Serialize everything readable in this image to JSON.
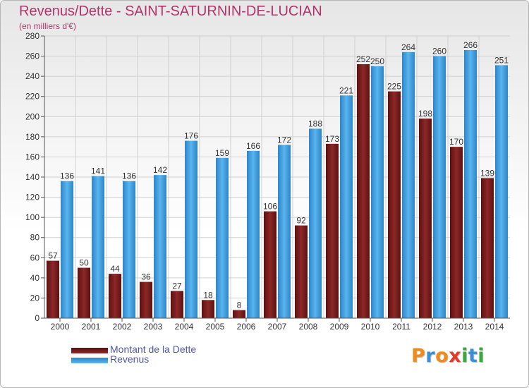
{
  "chart_data": {
    "type": "bar",
    "title": "Revenus/Dette - SAINT-SATURNIN-DE-LUCIAN",
    "subtitle": "(en milliers d'€)",
    "xlabel": "",
    "ylabel": "",
    "ylim": [
      0,
      280
    ],
    "yticks": [
      0,
      20,
      40,
      60,
      80,
      100,
      120,
      140,
      160,
      180,
      200,
      220,
      240,
      260,
      280
    ],
    "grid": true,
    "legend_position": "bottom-left",
    "categories": [
      "2000",
      "2001",
      "2002",
      "2003",
      "2004",
      "2005",
      "2006",
      "2007",
      "2008",
      "2009",
      "2010",
      "2011",
      "2012",
      "2013",
      "2014"
    ],
    "series": [
      {
        "name": "Montant de la Dette",
        "color": "#7a1a1a",
        "values": [
          57,
          50,
          44,
          36,
          27,
          18,
          8,
          106,
          92,
          173,
          252,
          225,
          198,
          170,
          139
        ]
      },
      {
        "name": "Revenus",
        "color": "#3a9ad9",
        "values": [
          136,
          141,
          136,
          142,
          176,
          159,
          166,
          172,
          188,
          221,
          250,
          264,
          260,
          266,
          251
        ]
      }
    ]
  },
  "logo": {
    "text": "Proxiti",
    "colors": [
      "#f08a1a",
      "#3a8fd6",
      "#e2392b",
      "#39a93b"
    ]
  }
}
